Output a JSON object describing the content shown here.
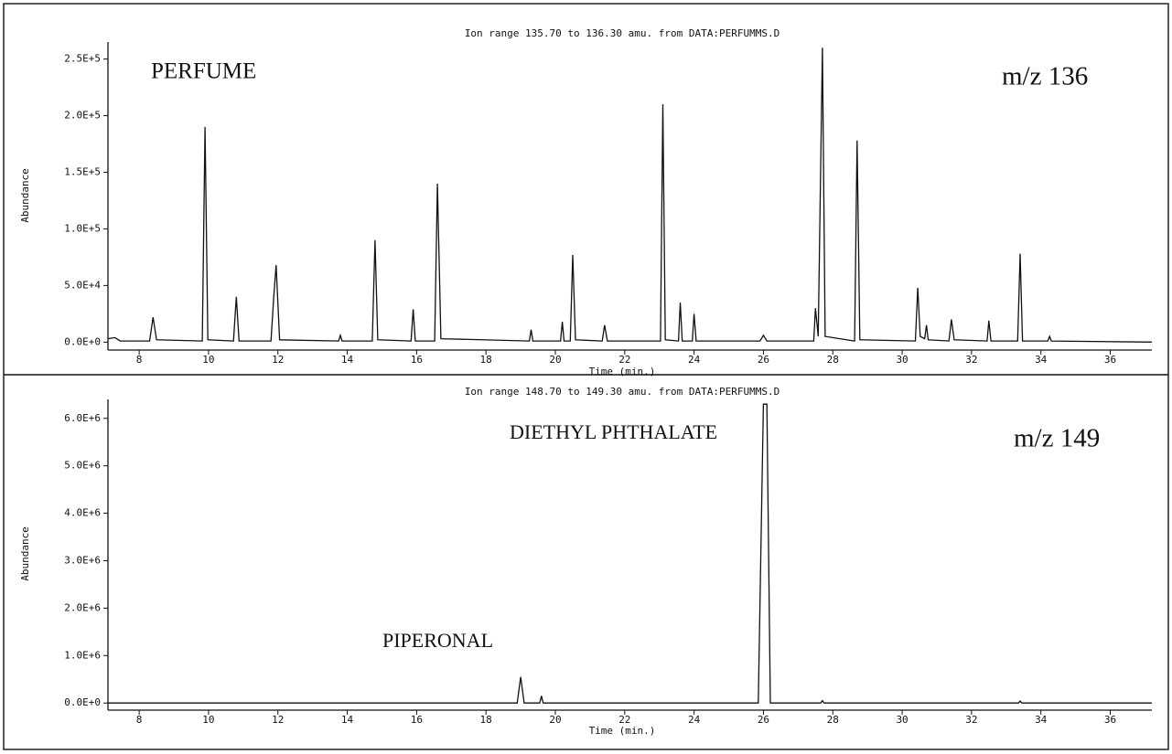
{
  "chart_data": [
    {
      "type": "line",
      "title": "Ion range 135.70 to 136.30 amu. from DATA:PERFUMMS.D",
      "x_label": "Time (min.)",
      "y_label": "Abundance",
      "annotations": [
        "PERFUME",
        "m/z 136"
      ],
      "color": "#111111",
      "x": [
        7.1,
        7.3,
        7.45,
        8.3,
        8.4,
        8.5,
        9.82,
        9.9,
        9.98,
        10.72,
        10.8,
        10.88,
        11.8,
        11.88,
        11.95,
        12.05,
        13.75,
        13.8,
        13.85,
        14.72,
        14.8,
        14.88,
        15.84,
        15.9,
        15.96,
        16.52,
        16.6,
        16.7,
        19.25,
        19.3,
        19.35,
        20.15,
        20.2,
        20.25,
        20.43,
        20.5,
        20.58,
        21.35,
        21.42,
        21.5,
        23.03,
        23.1,
        23.17,
        23.55,
        23.6,
        23.66,
        23.95,
        24.0,
        24.06,
        25.9,
        26.0,
        26.1,
        27.45,
        27.5,
        27.58,
        27.7,
        27.78,
        28.63,
        28.7,
        28.78,
        30.38,
        30.45,
        30.52,
        30.65,
        30.7,
        30.75,
        31.35,
        31.42,
        31.5,
        32.45,
        32.5,
        32.56,
        33.33,
        33.4,
        33.47,
        34.2,
        34.25,
        34.3,
        37.2
      ],
      "values": [
        3000,
        4000,
        1000,
        1000,
        22000,
        2000,
        1000,
        190000,
        2000,
        1000,
        40000,
        1000,
        1000,
        40000,
        68000,
        2000,
        1000,
        6000,
        1000,
        1000,
        90000,
        2000,
        1000,
        29000,
        1000,
        1000,
        140000,
        3000,
        1000,
        11000,
        1000,
        1000,
        18000,
        1000,
        1000,
        77000,
        2000,
        1000,
        15000,
        1000,
        1000,
        210000,
        2000,
        1000,
        35000,
        1000,
        1000,
        25000,
        1000,
        1000,
        6000,
        1000,
        1000,
        30000,
        5000,
        260000,
        5000,
        1000,
        178000,
        2000,
        1000,
        48000,
        5000,
        3000,
        15000,
        2000,
        1000,
        20000,
        2000,
        1000,
        19000,
        1000,
        1000,
        78000,
        1000,
        1000,
        5000,
        1000,
        0
      ],
      "xlim": [
        7.1,
        37.2
      ],
      "xticks": [
        8,
        10,
        12,
        14,
        16,
        18,
        20,
        22,
        24,
        26,
        28,
        30,
        32,
        34,
        36
      ],
      "ylim": [
        -7000,
        265000
      ],
      "yticks": [
        {
          "value": 0,
          "label": "0.0E+0"
        },
        {
          "value": 50000,
          "label": "5.0E+4"
        },
        {
          "value": 100000,
          "label": "1.0E+5"
        },
        {
          "value": 150000,
          "label": "1.5E+5"
        },
        {
          "value": 200000,
          "label": "2.0E+5"
        },
        {
          "value": 250000,
          "label": "2.5E+5"
        }
      ]
    },
    {
      "type": "line",
      "title": "Ion range 148.70 to 149.30 amu. from DATA:PERFUMMS.D",
      "x_label": "Time (min.)",
      "y_label": "Abundance",
      "annotations": [
        "DIETHYL PHTHALATE",
        "PIPERONAL",
        "m/z 149"
      ],
      "color": "#111111",
      "x": [
        7.1,
        18.9,
        19.0,
        19.1,
        19.55,
        19.6,
        19.65,
        25.85,
        26.0,
        26.1,
        26.2,
        27.65,
        27.7,
        27.75,
        33.35,
        33.4,
        33.45,
        37.2
      ],
      "values": [
        0,
        0,
        550000,
        0,
        0,
        150000,
        0,
        0,
        6300000,
        6300000,
        0,
        0,
        50000,
        0,
        0,
        40000,
        0,
        0
      ],
      "xlim": [
        7.1,
        37.2
      ],
      "xticks": [
        8,
        10,
        12,
        14,
        16,
        18,
        20,
        22,
        24,
        26,
        28,
        30,
        32,
        34,
        36
      ],
      "ylim": [
        -150000,
        6400000
      ],
      "yticks": [
        {
          "value": 0,
          "label": "0.0E+0"
        },
        {
          "value": 1000000,
          "label": "1.0E+6"
        },
        {
          "value": 2000000,
          "label": "2.0E+6"
        },
        {
          "value": 3000000,
          "label": "3.0E+6"
        },
        {
          "value": 4000000,
          "label": "4.0E+6"
        },
        {
          "value": 5000000,
          "label": "5.0E+6"
        },
        {
          "value": 6000000,
          "label": "6.0E+6"
        }
      ]
    }
  ]
}
